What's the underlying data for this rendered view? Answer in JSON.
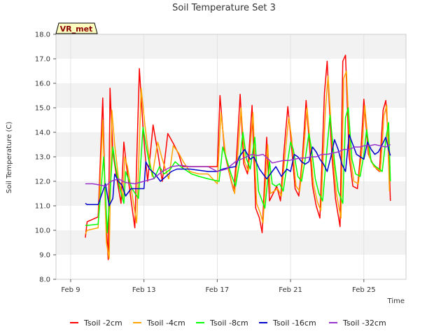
{
  "chart_data": {
    "type": "line",
    "title": "Soil Temperature Set 3",
    "xlabel": "Time",
    "ylabel": "Soil Temperature (C)",
    "badge": "VR_met",
    "ylim": [
      8.0,
      18.0
    ],
    "yticks": [
      "8.0",
      "9.0",
      "10.0",
      "11.0",
      "12.0",
      "13.0",
      "14.0",
      "15.0",
      "16.0",
      "17.0",
      "18.0"
    ],
    "xlim": [
      8.2,
      27.3
    ],
    "xticks": [
      {
        "label": "Feb 9",
        "day": 9
      },
      {
        "label": "Feb 13",
        "day": 13
      },
      {
        "label": "Feb 17",
        "day": 17
      },
      {
        "label": "Feb 21",
        "day": 21
      },
      {
        "label": "Feb 25",
        "day": 25
      }
    ],
    "bands": [
      [
        9,
        10
      ],
      [
        11,
        12
      ],
      [
        13,
        14
      ],
      [
        15,
        16
      ],
      [
        17,
        18
      ]
    ],
    "legend_placement": "bottom",
    "series": [
      {
        "name": "Tsoil -2cm",
        "color": "#ff0000",
        "x": [
          9.8,
          9.9,
          10.5,
          10.75,
          10.9,
          11.05,
          11.15,
          11.3,
          11.5,
          11.75,
          11.9,
          12.05,
          12.25,
          12.5,
          12.75,
          12.95,
          13.05,
          13.2,
          13.5,
          13.75,
          14.0,
          14.3,
          14.6,
          14.9,
          15.1,
          15.5,
          16.0,
          16.5,
          17.0,
          17.15,
          17.4,
          17.6,
          17.9,
          18.05,
          18.25,
          18.45,
          18.65,
          18.9,
          19.1,
          19.3,
          19.45,
          19.7,
          19.85,
          20.05,
          20.25,
          20.45,
          20.65,
          20.85,
          21.0,
          21.25,
          21.45,
          21.65,
          21.85,
          22.0,
          22.2,
          22.4,
          22.6,
          22.85,
          23.0,
          23.25,
          23.45,
          23.7,
          23.85,
          24.0,
          24.2,
          24.4,
          24.65,
          24.85,
          25.0,
          25.25,
          25.5,
          25.7,
          25.85,
          26.05,
          26.2,
          26.35,
          26.45
        ],
        "y": [
          9.7,
          10.35,
          10.55,
          15.4,
          10.8,
          8.8,
          15.8,
          13.2,
          12.2,
          11.1,
          13.6,
          12.6,
          11.5,
          10.1,
          16.6,
          14.2,
          13.2,
          12.0,
          14.3,
          13.2,
          12.0,
          13.95,
          13.55,
          13.1,
          12.6,
          12.6,
          12.6,
          12.6,
          12.6,
          15.5,
          13.2,
          12.5,
          11.6,
          13.0,
          15.55,
          12.7,
          12.3,
          15.1,
          10.9,
          10.5,
          9.9,
          13.8,
          11.2,
          11.5,
          11.8,
          11.2,
          13.3,
          15.05,
          13.9,
          11.7,
          11.4,
          13.0,
          15.3,
          13.8,
          11.8,
          11.0,
          10.5,
          15.6,
          16.9,
          13.1,
          11.3,
          10.15,
          16.9,
          17.15,
          13.0,
          11.8,
          11.7,
          13.4,
          15.35,
          13.1,
          12.7,
          12.5,
          12.4,
          14.9,
          15.3,
          13.5,
          11.2
        ]
      },
      {
        "name": "Tsoil -4cm",
        "color": "#ffa500",
        "x": [
          9.8,
          9.9,
          10.5,
          10.75,
          10.95,
          11.1,
          11.25,
          11.4,
          11.6,
          11.85,
          11.95,
          12.1,
          12.3,
          12.6,
          12.85,
          13.05,
          13.2,
          13.45,
          13.75,
          14.0,
          14.35,
          14.6,
          14.9,
          15.15,
          15.5,
          16.0,
          16.5,
          17.0,
          17.2,
          17.45,
          17.65,
          17.95,
          18.1,
          18.3,
          18.5,
          18.7,
          18.95,
          19.15,
          19.35,
          19.5,
          19.75,
          19.9,
          20.1,
          20.3,
          20.5,
          20.7,
          20.9,
          21.05,
          21.3,
          21.5,
          21.7,
          21.9,
          22.05,
          22.25,
          22.45,
          22.65,
          22.9,
          23.05,
          23.3,
          23.5,
          23.75,
          23.9,
          24.05,
          24.25,
          24.45,
          24.7,
          24.9,
          25.05,
          25.3,
          25.55,
          25.75,
          25.9,
          26.1,
          26.25,
          26.4
        ],
        "y": [
          9.85,
          10.0,
          10.1,
          14.5,
          9.5,
          8.85,
          14.9,
          13.5,
          12.2,
          11.3,
          13.0,
          12.6,
          11.7,
          10.3,
          15.8,
          14.3,
          13.4,
          12.2,
          13.6,
          12.9,
          12.1,
          13.45,
          13.15,
          12.8,
          12.4,
          12.3,
          12.3,
          11.9,
          14.8,
          13.1,
          12.4,
          11.5,
          12.9,
          15.0,
          12.8,
          12.4,
          14.8,
          11.1,
          10.7,
          10.3,
          13.5,
          11.5,
          11.6,
          11.7,
          11.4,
          13.1,
          14.6,
          13.8,
          11.8,
          11.6,
          13.1,
          15.0,
          13.7,
          11.9,
          11.2,
          10.8,
          14.9,
          16.3,
          13.2,
          11.5,
          10.5,
          16.2,
          16.5,
          13.1,
          12.0,
          11.9,
          13.3,
          15.1,
          13.0,
          12.6,
          12.5,
          12.4,
          14.7,
          15.1,
          11.6
        ]
      },
      {
        "name": "Tsoil -8cm",
        "color": "#00ff00",
        "x": [
          9.8,
          9.9,
          10.5,
          10.8,
          11.0,
          11.15,
          11.3,
          11.45,
          11.65,
          11.9,
          12.0,
          12.15,
          12.35,
          12.7,
          12.95,
          13.15,
          13.3,
          13.55,
          13.85,
          14.1,
          14.45,
          14.7,
          15.0,
          15.2,
          15.6,
          16.0,
          16.5,
          17.1,
          17.3,
          17.55,
          17.75,
          18.0,
          18.2,
          18.4,
          18.6,
          18.8,
          19.05,
          19.25,
          19.45,
          19.6,
          19.85,
          20.0,
          20.2,
          20.4,
          20.6,
          20.8,
          21.0,
          21.15,
          21.4,
          21.6,
          21.8,
          22.0,
          22.15,
          22.35,
          22.55,
          22.75,
          23.0,
          23.15,
          23.4,
          23.6,
          23.85,
          24.0,
          24.15,
          24.35,
          24.55,
          24.8,
          25.0,
          25.15,
          25.4,
          25.65,
          25.85,
          26.0,
          26.2,
          26.35,
          26.45
        ],
        "y": [
          10.2,
          10.2,
          10.25,
          13.0,
          9.9,
          11.5,
          13.4,
          12.6,
          11.8,
          11.1,
          12.4,
          12.1,
          11.7,
          11.3,
          14.2,
          13.3,
          12.7,
          12.1,
          12.6,
          12.3,
          12.5,
          12.8,
          12.6,
          12.5,
          12.3,
          12.2,
          12.1,
          12.0,
          13.4,
          12.8,
          12.3,
          11.8,
          12.7,
          14.0,
          12.9,
          12.5,
          13.8,
          11.6,
          11.2,
          10.9,
          12.8,
          11.9,
          11.8,
          11.9,
          11.6,
          12.6,
          13.6,
          13.3,
          12.2,
          12.0,
          12.9,
          13.95,
          13.3,
          12.1,
          11.5,
          11.2,
          13.4,
          14.7,
          12.8,
          11.6,
          11.1,
          14.6,
          15.0,
          12.9,
          12.3,
          12.2,
          13.1,
          14.1,
          12.8,
          12.6,
          12.5,
          12.4,
          13.7,
          14.4,
          12.0
        ]
      },
      {
        "name": "Tsoil -16cm",
        "color": "#0000cd",
        "x": [
          9.8,
          9.9,
          10.5,
          10.9,
          11.1,
          11.3,
          11.4,
          11.6,
          11.8,
          12.0,
          12.3,
          12.5,
          12.8,
          13.0,
          13.1,
          13.3,
          13.6,
          13.9,
          14.2,
          14.5,
          14.8,
          15.1,
          15.5,
          16.0,
          16.5,
          17.0,
          17.3,
          17.6,
          18.0,
          18.2,
          18.5,
          18.8,
          19.0,
          19.3,
          19.5,
          19.7,
          19.9,
          20.2,
          20.5,
          20.8,
          21.0,
          21.2,
          21.4,
          21.6,
          21.8,
          22.0,
          22.2,
          22.4,
          22.6,
          22.8,
          23.0,
          23.2,
          23.4,
          23.6,
          23.8,
          24.0,
          24.2,
          24.4,
          24.6,
          24.8,
          25.0,
          25.2,
          25.4,
          25.6,
          25.8,
          26.0,
          26.2,
          26.35,
          26.45
        ],
        "y": [
          11.1,
          11.05,
          11.05,
          11.9,
          11.0,
          11.3,
          12.3,
          12.0,
          11.85,
          11.4,
          11.7,
          11.7,
          11.7,
          11.7,
          12.8,
          12.5,
          12.3,
          12.0,
          12.2,
          12.4,
          12.5,
          12.5,
          12.5,
          12.45,
          12.4,
          12.4,
          12.5,
          12.55,
          12.6,
          13.0,
          13.3,
          12.9,
          13.0,
          12.5,
          12.3,
          12.1,
          12.3,
          12.6,
          12.2,
          12.5,
          12.4,
          13.1,
          13.0,
          12.8,
          12.7,
          12.8,
          13.4,
          13.2,
          12.9,
          12.7,
          12.4,
          13.0,
          13.7,
          13.3,
          12.7,
          12.4,
          13.9,
          13.5,
          13.1,
          13.0,
          12.9,
          13.6,
          13.3,
          13.1,
          13.2,
          13.5,
          13.8,
          13.3,
          13.05
        ]
      },
      {
        "name": "Tsoil -32cm",
        "color": "#9932cc",
        "x": [
          9.8,
          10.2,
          10.6,
          10.9,
          11.2,
          11.6,
          12.0,
          12.5,
          13.0,
          13.5,
          14.0,
          14.5,
          15.0,
          15.5,
          16.0,
          16.5,
          17.0,
          17.5,
          18.0,
          18.3,
          18.6,
          18.9,
          19.2,
          19.5,
          19.8,
          20.0,
          20.3,
          20.6,
          20.9,
          21.2,
          21.5,
          21.8,
          22.1,
          22.4,
          22.7,
          23.0,
          23.3,
          23.6,
          23.9,
          24.2,
          24.5,
          24.8,
          25.0,
          25.3,
          25.6,
          25.9,
          26.2,
          26.45
        ],
        "y": [
          11.9,
          11.9,
          11.85,
          11.8,
          12.0,
          12.1,
          11.95,
          11.9,
          12.0,
          12.1,
          12.4,
          12.6,
          12.65,
          12.6,
          12.6,
          12.6,
          12.4,
          12.5,
          12.8,
          12.9,
          13.0,
          13.1,
          13.05,
          13.1,
          12.9,
          12.75,
          12.8,
          12.85,
          12.85,
          12.9,
          12.95,
          12.95,
          13.0,
          13.0,
          13.1,
          13.1,
          13.15,
          13.2,
          13.3,
          13.3,
          13.4,
          13.4,
          13.45,
          13.45,
          13.5,
          13.45,
          13.4,
          13.5
        ]
      }
    ]
  }
}
